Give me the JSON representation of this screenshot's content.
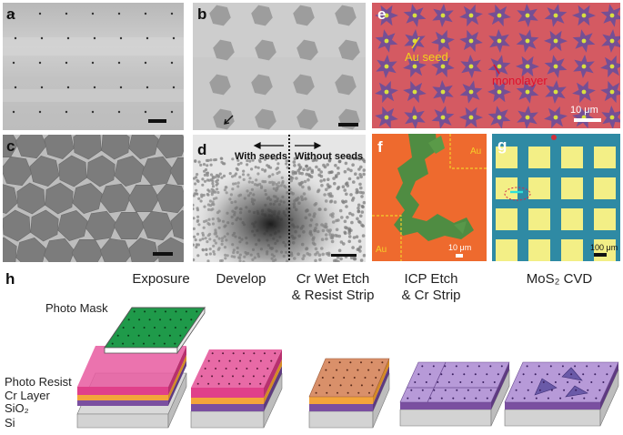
{
  "panels": {
    "a": {
      "label": "a"
    },
    "b": {
      "label": "b"
    },
    "c": {
      "label": "c"
    },
    "d": {
      "label": "d",
      "with_seeds": "With seeds",
      "without_seeds": "Without seeds"
    },
    "e": {
      "label": "e",
      "au_seed": "Au seed",
      "monolayer": "monolayer",
      "scale": "10 μm"
    },
    "f": {
      "label": "f",
      "au_top": "Au",
      "au_bottom": "Au",
      "scale": "10 μm"
    },
    "g": {
      "label": "g",
      "scale": "100 μm"
    },
    "h": {
      "label": "h"
    }
  },
  "process": {
    "stages": [
      "Exposure",
      "Develop",
      "Cr Wet Etch\n& Resist Strip",
      "ICP Etch\n& Cr Strip",
      "MoS₂ CVD"
    ],
    "photo_mask": "Photo Mask",
    "layers": [
      "Photo Resist",
      "Cr Layer",
      "SiO₂",
      "Si"
    ]
  },
  "colors": {
    "mask_green": "#1f9a4a",
    "resist_pink": "#e0408a",
    "cr_orange": "#f3a53a",
    "sio2_purple": "#7a4fa0",
    "si_gray": "#d3d3d3",
    "mos2_lilac": "#b79ad8",
    "cr_bronze": "#d9906a",
    "optical_red": "#d65a5e",
    "optical_orange": "#f06a2a",
    "optical_yellow": "#f4f08a",
    "optical_teal": "#2d8aa8"
  }
}
